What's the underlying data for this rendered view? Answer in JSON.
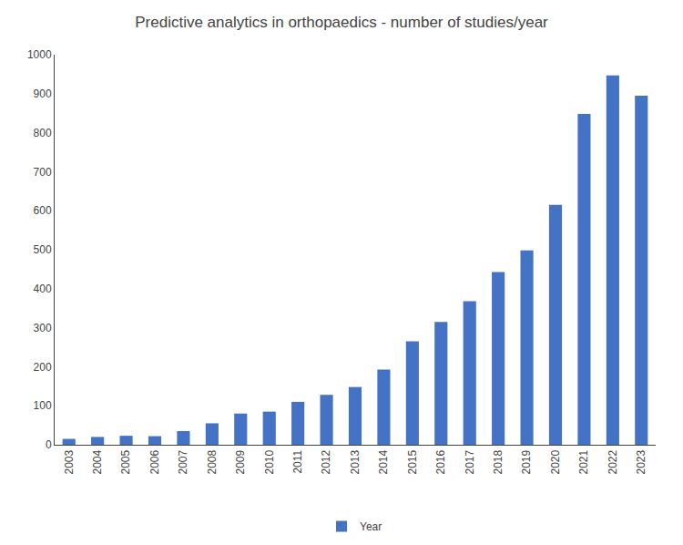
{
  "chart_data": {
    "type": "bar",
    "title": "Predictive analytics in orthopaedics - number of studies/year",
    "categories": [
      "2003",
      "2004",
      "2005",
      "2006",
      "2007",
      "2008",
      "2009",
      "2010",
      "2011",
      "2012",
      "2013",
      "2014",
      "2015",
      "2016",
      "2017",
      "2018",
      "2019",
      "2020",
      "2021",
      "2022",
      "2023"
    ],
    "series": [
      {
        "name": "Year",
        "color": "#4472C4",
        "values": [
          15,
          20,
          23,
          22,
          35,
          55,
          80,
          85,
          110,
          128,
          148,
          193,
          265,
          315,
          368,
          443,
          498,
          615,
          848,
          947,
          895
        ]
      }
    ],
    "ylim": [
      0,
      1000
    ],
    "yticks": [
      0,
      100,
      200,
      300,
      400,
      500,
      600,
      700,
      800,
      900,
      1000
    ],
    "grid": false,
    "legend": "bottom"
  }
}
